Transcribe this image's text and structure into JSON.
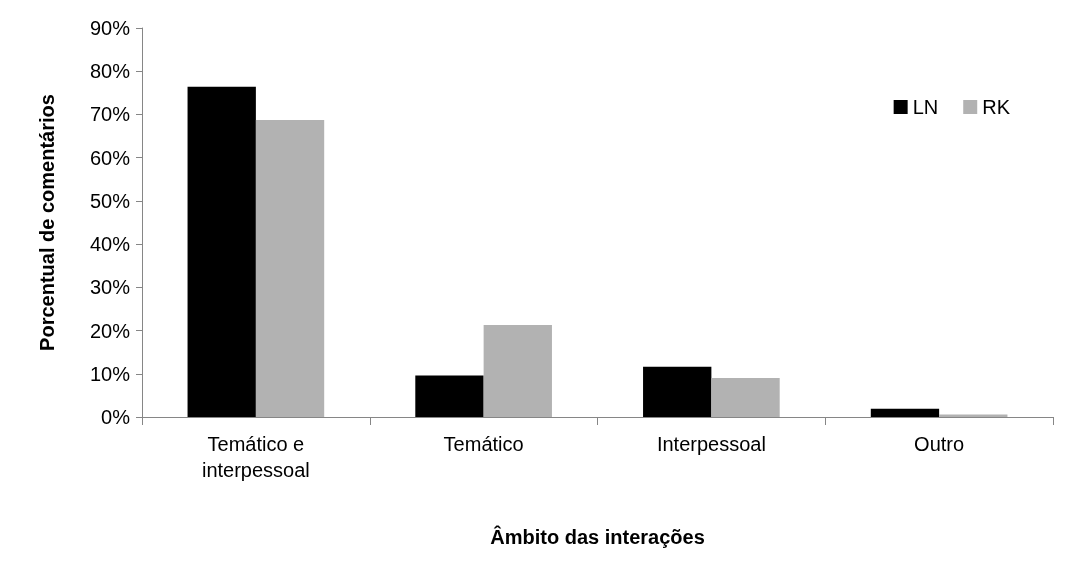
{
  "chart_data": {
    "type": "bar",
    "xlabel": "Âmbito das interações",
    "ylabel": "Porcentual de comentários",
    "categories": [
      "Temático e\ninterpessoal",
      "Temático",
      "Interpessoal",
      "Outro"
    ],
    "series": [
      {
        "name": "LN",
        "color": "#000000",
        "values": [
          76.4,
          9.6,
          11.6,
          1.9
        ]
      },
      {
        "name": "RK",
        "color": "#b2b2b2",
        "values": [
          68.7,
          21.3,
          9.0,
          0.6
        ]
      }
    ],
    "ylim": [
      0,
      90
    ],
    "yticks": [
      {
        "value": 0,
        "label": "0%"
      },
      {
        "value": 10,
        "label": "10%"
      },
      {
        "value": 20,
        "label": "20%"
      },
      {
        "value": 30,
        "label": "30%"
      },
      {
        "value": 40,
        "label": "40%"
      },
      {
        "value": 50,
        "label": "50%"
      },
      {
        "value": 60,
        "label": "60%"
      },
      {
        "value": 70,
        "label": "70%"
      },
      {
        "value": 80,
        "label": "80%"
      },
      {
        "value": 90,
        "label": "90%"
      }
    ],
    "grid": false,
    "legend": "top right"
  }
}
